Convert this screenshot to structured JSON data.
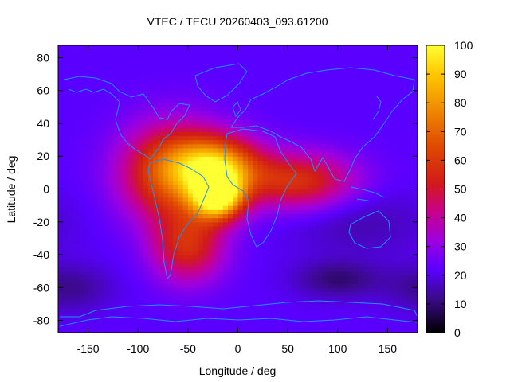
{
  "chart_data": {
    "type": "heatmap",
    "title": "VTEC / TECU 20260403_093.61200",
    "xlabel": "Longitude / deg",
    "ylabel": "Latitude / deg",
    "xlim": [
      -180,
      180
    ],
    "ylim": [
      -87.5,
      87.5
    ],
    "xticks": [
      -150,
      -100,
      -50,
      0,
      50,
      100,
      150
    ],
    "yticks": [
      -80,
      -60,
      -40,
      -20,
      0,
      20,
      40,
      60,
      80
    ],
    "colorbar": {
      "range": [
        0,
        100
      ],
      "ticks": [
        0,
        10,
        20,
        30,
        40,
        50,
        60,
        70,
        80,
        90,
        100
      ],
      "palette": [
        "#000000",
        "#4b0082",
        "#7a00ff",
        "#c000c0",
        "#d7262f",
        "#f07800",
        "#ffd200",
        "#ffff33"
      ]
    },
    "grid_resolution_deg": [
      5,
      2.5
    ],
    "features": [
      {
        "lon": -20,
        "lat": -4,
        "value": 96,
        "sx": 18,
        "sy": 10
      },
      {
        "lon": -65,
        "lat": 10,
        "value": 70,
        "sx": 35,
        "sy": 20
      },
      {
        "lon": -20,
        "lat": 15,
        "value": 72,
        "sx": 30,
        "sy": 12
      },
      {
        "lon": 60,
        "lat": 5,
        "value": 58,
        "sx": 40,
        "sy": 12
      },
      {
        "lon": -50,
        "lat": -35,
        "value": 55,
        "sx": 25,
        "sy": 15
      },
      {
        "lon": 100,
        "lat": -55,
        "value": 10,
        "sx": 30,
        "sy": 8
      },
      {
        "lon": 120,
        "lat": -20,
        "value": 15,
        "sx": 50,
        "sy": 15
      },
      {
        "lon": -170,
        "lat": -60,
        "value": 12,
        "sx": 30,
        "sy": 10
      }
    ],
    "background_value": 22,
    "coastline_color": "#1e90ff"
  },
  "colors": {
    "frame": "#000000",
    "coastline": "#1e90ff"
  }
}
